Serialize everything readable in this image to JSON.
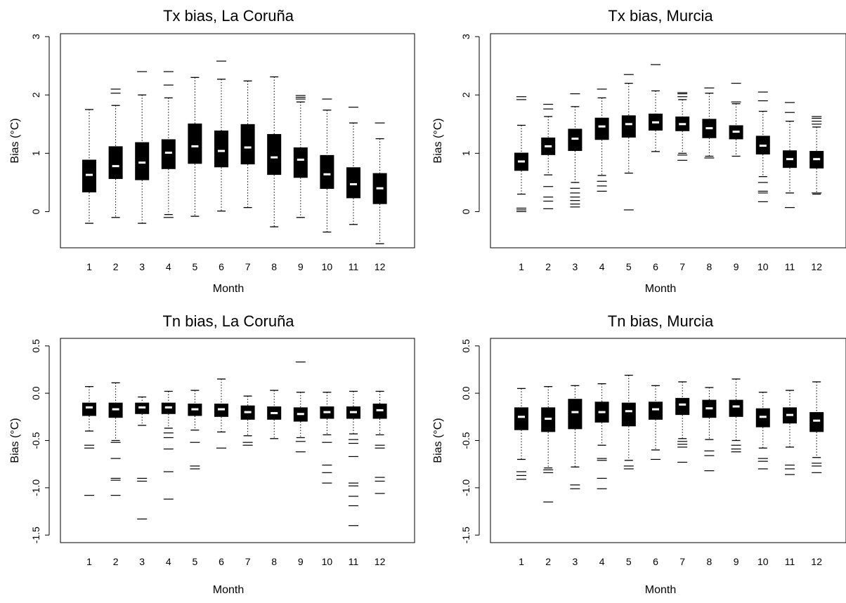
{
  "figure": {
    "charts": [
      {
        "title": "Tx bias, La Coruña",
        "xlabel": "Month",
        "ylabel": "Bias (°C)"
      },
      {
        "title": "Tx bias, Murcia",
        "xlabel": "Month",
        "ylabel": "Bias (°C)"
      },
      {
        "title": "Tn bias, La Coruña",
        "xlabel": "Month",
        "ylabel": "Bias (°C)"
      },
      {
        "title": "Tn bias, Murcia",
        "xlabel": "Month",
        "ylabel": "Bias (°C)"
      }
    ]
  },
  "chart_data": [
    {
      "type": "boxplot",
      "title": "Tx bias, La Coruña",
      "xlabel": "Month",
      "ylabel": "Bias (°C)",
      "ylim": [
        -0.62,
        3.05
      ],
      "yticks": [
        "0",
        "1",
        "2",
        "3"
      ],
      "categories": [
        "1",
        "2",
        "3",
        "4",
        "5",
        "6",
        "7",
        "8",
        "9",
        "10",
        "11",
        "12"
      ],
      "grid": false,
      "boxes": [
        {
          "median": 0.63,
          "q1": 0.33,
          "q3": 0.89,
          "whisker_low": -0.2,
          "whisker_high": 1.75,
          "outliers": []
        },
        {
          "median": 0.78,
          "q1": 0.56,
          "q3": 1.12,
          "whisker_low": -0.1,
          "whisker_high": 1.82,
          "outliers": [
            2.03,
            2.1
          ]
        },
        {
          "median": 0.84,
          "q1": 0.54,
          "q3": 1.19,
          "whisker_low": -0.2,
          "whisker_high": 2.0,
          "outliers": [
            2.4
          ]
        },
        {
          "median": 1.01,
          "q1": 0.73,
          "q3": 1.24,
          "whisker_low": -0.05,
          "whisker_high": 1.95,
          "outliers": [
            -0.1,
            2.17,
            2.4
          ]
        },
        {
          "median": 1.12,
          "q1": 0.82,
          "q3": 1.51,
          "whisker_low": -0.08,
          "whisker_high": 2.3,
          "outliers": []
        },
        {
          "median": 1.04,
          "q1": 0.76,
          "q3": 1.39,
          "whisker_low": 0.01,
          "whisker_high": 2.27,
          "outliers": [
            2.58
          ]
        },
        {
          "median": 1.1,
          "q1": 0.81,
          "q3": 1.5,
          "whisker_low": 0.07,
          "whisker_high": 2.24,
          "outliers": []
        },
        {
          "median": 0.93,
          "q1": 0.63,
          "q3": 1.33,
          "whisker_low": -0.26,
          "whisker_high": 2.31,
          "outliers": []
        },
        {
          "median": 0.89,
          "q1": 0.58,
          "q3": 1.1,
          "whisker_low": -0.1,
          "whisker_high": 1.88,
          "outliers": [
            1.93,
            1.96,
            1.99
          ]
        },
        {
          "median": 0.64,
          "q1": 0.39,
          "q3": 0.97,
          "whisker_low": -0.35,
          "whisker_high": 1.74,
          "outliers": [
            1.93
          ]
        },
        {
          "median": 0.47,
          "q1": 0.23,
          "q3": 0.76,
          "whisker_low": -0.22,
          "whisker_high": 1.52,
          "outliers": [
            1.79
          ]
        },
        {
          "median": 0.4,
          "q1": 0.13,
          "q3": 0.66,
          "whisker_low": -0.55,
          "whisker_high": 1.25,
          "outliers": [
            1.52
          ]
        }
      ]
    },
    {
      "type": "boxplot",
      "title": "Tx bias, Murcia",
      "xlabel": "Month",
      "ylabel": "Bias (°C)",
      "ylim": [
        -0.62,
        3.05
      ],
      "yticks": [
        "0",
        "1",
        "2",
        "3"
      ],
      "categories": [
        "1",
        "2",
        "3",
        "4",
        "5",
        "6",
        "7",
        "8",
        "9",
        "10",
        "11",
        "12"
      ],
      "grid": false,
      "boxes": [
        {
          "median": 0.86,
          "q1": 0.7,
          "q3": 1.01,
          "whisker_low": 0.3,
          "whisker_high": 1.48,
          "outliers": [
            0.0,
            0.03,
            0.06,
            1.92,
            1.97
          ]
        },
        {
          "median": 1.12,
          "q1": 0.97,
          "q3": 1.27,
          "whisker_low": 0.63,
          "whisker_high": 1.63,
          "outliers": [
            0.05,
            0.18,
            0.25,
            0.43,
            1.76,
            1.84
          ]
        },
        {
          "median": 1.25,
          "q1": 1.04,
          "q3": 1.42,
          "whisker_low": 0.5,
          "whisker_high": 1.8,
          "outliers": [
            0.08,
            0.13,
            0.19,
            0.25,
            0.32,
            0.4,
            2.02
          ]
        },
        {
          "median": 1.46,
          "q1": 1.23,
          "q3": 1.61,
          "whisker_low": 0.62,
          "whisker_high": 1.95,
          "outliers": [
            0.35,
            0.44,
            0.52,
            2.1
          ]
        },
        {
          "median": 1.5,
          "q1": 1.27,
          "q3": 1.65,
          "whisker_low": 0.66,
          "whisker_high": 2.2,
          "outliers": [
            0.03,
            2.35
          ]
        },
        {
          "median": 1.53,
          "q1": 1.39,
          "q3": 1.68,
          "whisker_low": 1.03,
          "whisker_high": 2.07,
          "outliers": [
            2.52
          ]
        },
        {
          "median": 1.5,
          "q1": 1.38,
          "q3": 1.63,
          "whisker_low": 1.0,
          "whisker_high": 1.92,
          "outliers": [
            0.88,
            0.97,
            1.97,
            2.02,
            2.04
          ]
        },
        {
          "median": 1.43,
          "q1": 1.26,
          "q3": 1.59,
          "whisker_low": 0.95,
          "whisker_high": 2.03,
          "outliers": [
            0.92,
            2.12
          ]
        },
        {
          "median": 1.37,
          "q1": 1.24,
          "q3": 1.48,
          "whisker_low": 0.95,
          "whisker_high": 1.85,
          "outliers": [
            1.88,
            2.2
          ]
        },
        {
          "median": 1.13,
          "q1": 0.98,
          "q3": 1.3,
          "whisker_low": 0.6,
          "whisker_high": 1.72,
          "outliers": [
            0.17,
            0.32,
            0.35,
            0.5,
            1.9,
            2.05
          ]
        },
        {
          "median": 0.9,
          "q1": 0.75,
          "q3": 1.05,
          "whisker_low": 0.32,
          "whisker_high": 1.55,
          "outliers": [
            0.07,
            1.7,
            1.87
          ]
        },
        {
          "median": 0.9,
          "q1": 0.74,
          "q3": 1.04,
          "whisker_low": 0.3,
          "whisker_high": 1.45,
          "outliers": [
            0.32,
            1.5,
            1.55,
            1.6,
            1.63
          ]
        }
      ]
    },
    {
      "type": "boxplot",
      "title": "Tn bias, La Coruña",
      "xlabel": "Month",
      "ylabel": "Bias (°C)",
      "ylim": [
        -1.58,
        0.58
      ],
      "yticks": [
        "-1.5",
        "-1.0",
        "-0.5",
        "0.0",
        "0.5"
      ],
      "categories": [
        "1",
        "2",
        "3",
        "4",
        "5",
        "6",
        "7",
        "8",
        "9",
        "10",
        "11",
        "12"
      ],
      "grid": false,
      "boxes": [
        {
          "median": -0.15,
          "q1": -0.24,
          "q3": -0.1,
          "whisker_low": -0.4,
          "whisker_high": 0.07,
          "outliers": [
            -0.55,
            -0.58,
            -1.08
          ]
        },
        {
          "median": -0.17,
          "q1": -0.26,
          "q3": -0.1,
          "whisker_low": -0.5,
          "whisker_high": 0.11,
          "outliers": [
            -0.52,
            -0.69,
            -0.9,
            -0.92,
            -1.08
          ]
        },
        {
          "median": -0.15,
          "q1": -0.22,
          "q3": -0.1,
          "whisker_low": -0.34,
          "whisker_high": -0.04,
          "outliers": [
            -0.9,
            -0.93,
            -1.33
          ]
        },
        {
          "median": -0.15,
          "q1": -0.22,
          "q3": -0.1,
          "whisker_low": -0.37,
          "whisker_high": 0.02,
          "outliers": [
            -0.42,
            -0.47,
            -0.59,
            -0.83,
            -1.12
          ]
        },
        {
          "median": -0.17,
          "q1": -0.24,
          "q3": -0.11,
          "whisker_low": -0.39,
          "whisker_high": 0.03,
          "outliers": [
            -0.52,
            -0.77,
            -0.8
          ]
        },
        {
          "median": -0.17,
          "q1": -0.25,
          "q3": -0.11,
          "whisker_low": -0.41,
          "whisker_high": 0.15,
          "outliers": [
            -0.58
          ]
        },
        {
          "median": -0.2,
          "q1": -0.28,
          "q3": -0.13,
          "whisker_low": -0.45,
          "whisker_high": -0.03,
          "outliers": [
            -0.52,
            -0.55
          ]
        },
        {
          "median": -0.21,
          "q1": -0.28,
          "q3": -0.14,
          "whisker_low": -0.48,
          "whisker_high": 0.03,
          "outliers": []
        },
        {
          "median": -0.22,
          "q1": -0.3,
          "q3": -0.15,
          "whisker_low": -0.47,
          "whisker_high": 0.01,
          "outliers": [
            -0.51,
            -0.62,
            0.33
          ]
        },
        {
          "median": -0.2,
          "q1": -0.27,
          "q3": -0.14,
          "whisker_low": -0.44,
          "whisker_high": 0.01,
          "outliers": [
            -0.52,
            -0.76,
            -0.84,
            -0.95
          ]
        },
        {
          "median": -0.2,
          "q1": -0.27,
          "q3": -0.14,
          "whisker_low": -0.43,
          "whisker_high": 0.02,
          "outliers": [
            -0.49,
            -0.53,
            -0.67,
            -0.95,
            -0.98,
            -1.09,
            -1.19,
            -1.4
          ]
        },
        {
          "median": -0.18,
          "q1": -0.27,
          "q3": -0.11,
          "whisker_low": -0.44,
          "whisker_high": 0.02,
          "outliers": [
            -0.55,
            -0.58,
            -0.89,
            -0.93,
            -1.06
          ]
        }
      ]
    },
    {
      "type": "boxplot",
      "title": "Tn bias, Murcia",
      "xlabel": "Month",
      "ylabel": "Bias (°C)",
      "ylim": [
        -1.58,
        0.58
      ],
      "yticks": [
        "-1.5",
        "-1.0",
        "-0.5",
        "0.0",
        "0.5"
      ],
      "categories": [
        "1",
        "2",
        "3",
        "4",
        "5",
        "6",
        "7",
        "8",
        "9",
        "10",
        "11",
        "12"
      ],
      "grid": false,
      "boxes": [
        {
          "median": -0.25,
          "q1": -0.39,
          "q3": -0.15,
          "whisker_low": -0.7,
          "whisker_high": 0.05,
          "outliers": [
            -0.83,
            -0.87,
            -0.91
          ]
        },
        {
          "median": -0.27,
          "q1": -0.41,
          "q3": -0.15,
          "whisker_low": -0.79,
          "whisker_high": 0.07,
          "outliers": [
            -0.81,
            -0.84,
            -1.15
          ]
        },
        {
          "median": -0.2,
          "q1": -0.38,
          "q3": -0.06,
          "whisker_low": -0.78,
          "whisker_high": 0.08,
          "outliers": [
            -0.97,
            -1.01
          ]
        },
        {
          "median": -0.2,
          "q1": -0.31,
          "q3": -0.09,
          "whisker_low": -0.55,
          "whisker_high": 0.1,
          "outliers": [
            -0.69,
            -0.71,
            -0.9,
            -1.01
          ]
        },
        {
          "median": -0.19,
          "q1": -0.35,
          "q3": -0.1,
          "whisker_low": -0.71,
          "whisker_high": 0.19,
          "outliers": [
            -0.77,
            -0.8
          ]
        },
        {
          "median": -0.17,
          "q1": -0.28,
          "q3": -0.09,
          "whisker_low": -0.6,
          "whisker_high": 0.08,
          "outliers": [
            -0.7
          ]
        },
        {
          "median": -0.12,
          "q1": -0.23,
          "q3": -0.05,
          "whisker_low": -0.48,
          "whisker_high": 0.12,
          "outliers": [
            -0.51,
            -0.54,
            -0.57,
            -0.73
          ]
        },
        {
          "median": -0.16,
          "q1": -0.26,
          "q3": -0.07,
          "whisker_low": -0.49,
          "whisker_high": 0.06,
          "outliers": [
            -0.61,
            -0.66,
            -0.82
          ]
        },
        {
          "median": -0.14,
          "q1": -0.25,
          "q3": -0.07,
          "whisker_low": -0.5,
          "whisker_high": 0.15,
          "outliers": [
            -0.55,
            -0.59,
            -0.62
          ]
        },
        {
          "median": -0.25,
          "q1": -0.36,
          "q3": -0.16,
          "whisker_low": -0.58,
          "whisker_high": 0.01,
          "outliers": [
            -0.69,
            -0.72,
            -0.8
          ]
        },
        {
          "median": -0.23,
          "q1": -0.32,
          "q3": -0.15,
          "whisker_low": -0.57,
          "whisker_high": 0.03,
          "outliers": [
            -0.76,
            -0.8,
            -0.86
          ]
        },
        {
          "median": -0.29,
          "q1": -0.41,
          "q3": -0.2,
          "whisker_low": -0.68,
          "whisker_high": 0.12,
          "outliers": [
            -0.74,
            -0.77,
            -0.84
          ]
        }
      ]
    }
  ]
}
